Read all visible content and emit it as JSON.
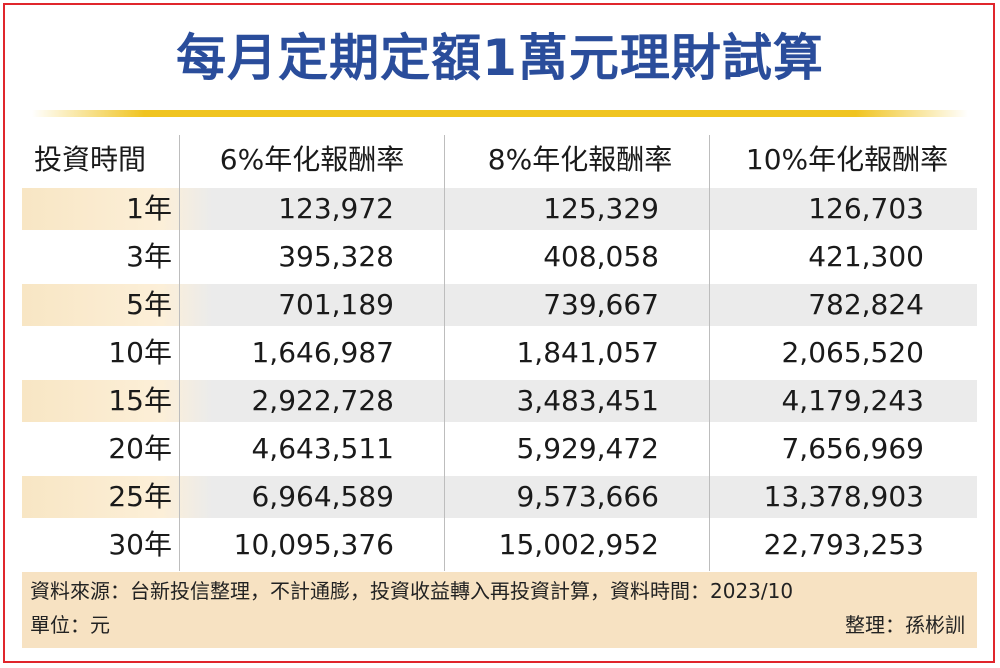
{
  "title": "每月定期定額1萬元理財試算",
  "table": {
    "headers": [
      "投資時間",
      "6%年化報酬率",
      "8%年化報酬率",
      "10%年化報酬率"
    ],
    "rows": [
      [
        "1年",
        "123,972",
        "125,329",
        "126,703"
      ],
      [
        "3年",
        "395,328",
        "408,058",
        "421,300"
      ],
      [
        "5年",
        "701,189",
        "739,667",
        "782,824"
      ],
      [
        "10年",
        "1,646,987",
        "1,841,057",
        "2,065,520"
      ],
      [
        "15年",
        "2,922,728",
        "3,483,451",
        "4,179,243"
      ],
      [
        "20年",
        "4,643,511",
        "5,929,472",
        "7,656,969"
      ],
      [
        "25年",
        "6,964,589",
        "9,573,666",
        "13,378,903"
      ],
      [
        "30年",
        "10,095,376",
        "15,002,952",
        "22,793,253"
      ]
    ]
  },
  "footer": {
    "source": "資料來源：台新投信整理，不計通膨，投資收益轉入再投資計算，資料時間：2023/10",
    "unit": "單位：元",
    "editor": "整理：孫彬訓"
  },
  "colors": {
    "title": "#2a4d9b",
    "border": "#e0262c",
    "rule": "#f0c420",
    "shade": "#ebebeb",
    "footer": "#f7e2c2"
  }
}
